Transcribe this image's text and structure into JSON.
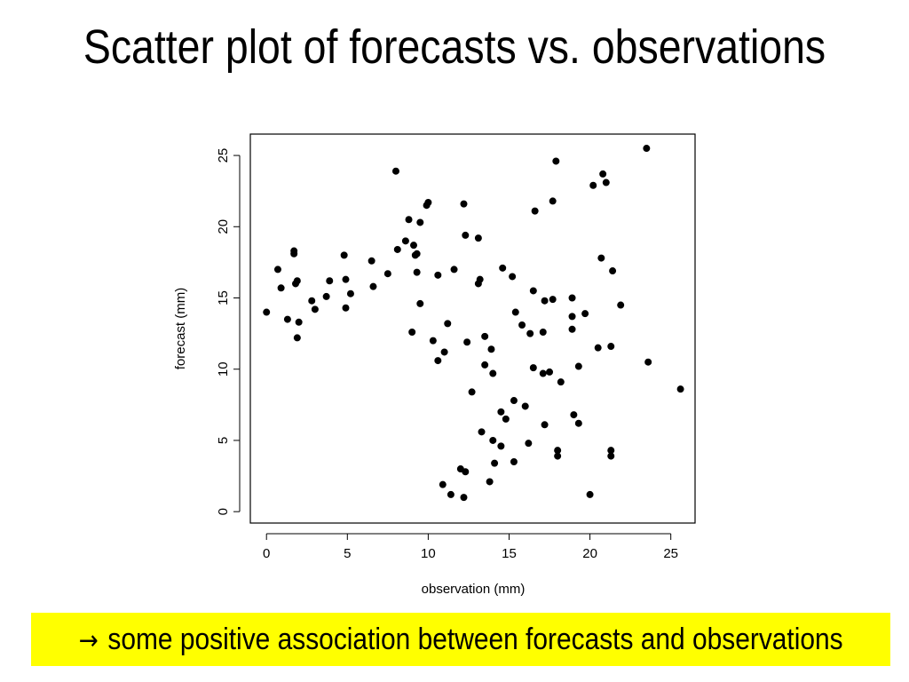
{
  "slide": {
    "title": "Scatter plot of forecasts vs. observations",
    "callout": {
      "arrow_glyph": "→",
      "text": "some positive association between forecasts and observations",
      "background": "#ffff00"
    }
  },
  "chart_data": {
    "type": "scatter",
    "xlabel": "observation (mm)",
    "ylabel": "forecast (mm)",
    "xlim": [
      -1,
      26.5
    ],
    "ylim": [
      -0.8,
      26.5
    ],
    "xticks": [
      0,
      5,
      10,
      15,
      20,
      25
    ],
    "yticks": [
      0,
      5,
      10,
      15,
      20,
      25
    ],
    "grid": false,
    "point_color": "#000000",
    "series": [
      {
        "points": [
          [
            23.5,
            25.5
          ],
          [
            8.0,
            23.9
          ],
          [
            17.9,
            24.6
          ],
          [
            20.8,
            23.7
          ],
          [
            21.0,
            23.1
          ],
          [
            20.2,
            22.9
          ],
          [
            10.0,
            21.7
          ],
          [
            9.9,
            21.5
          ],
          [
            12.2,
            21.6
          ],
          [
            17.7,
            21.8
          ],
          [
            16.6,
            21.1
          ],
          [
            9.5,
            20.3
          ],
          [
            8.8,
            20.5
          ],
          [
            12.3,
            19.4
          ],
          [
            13.1,
            19.2
          ],
          [
            8.6,
            19.0
          ],
          [
            9.1,
            18.7
          ],
          [
            1.7,
            18.3
          ],
          [
            1.7,
            18.1
          ],
          [
            8.1,
            18.4
          ],
          [
            9.3,
            18.1
          ],
          [
            4.8,
            18.0
          ],
          [
            9.2,
            18.0
          ],
          [
            20.7,
            17.8
          ],
          [
            6.5,
            17.6
          ],
          [
            0.7,
            17.0
          ],
          [
            14.6,
            17.1
          ],
          [
            21.4,
            16.9
          ],
          [
            11.6,
            17.0
          ],
          [
            9.3,
            16.8
          ],
          [
            7.5,
            16.7
          ],
          [
            10.6,
            16.6
          ],
          [
            1.9,
            16.2
          ],
          [
            3.9,
            16.2
          ],
          [
            4.9,
            16.3
          ],
          [
            13.2,
            16.3
          ],
          [
            15.2,
            16.5
          ],
          [
            1.8,
            16.0
          ],
          [
            0.9,
            15.7
          ],
          [
            6.6,
            15.8
          ],
          [
            13.1,
            16.0
          ],
          [
            5.2,
            15.3
          ],
          [
            16.5,
            15.5
          ],
          [
            3.7,
            15.1
          ],
          [
            18.9,
            15.0
          ],
          [
            2.8,
            14.8
          ],
          [
            0.0,
            14.0
          ],
          [
            17.2,
            14.8
          ],
          [
            17.7,
            14.9
          ],
          [
            21.9,
            14.5
          ],
          [
            3.0,
            14.2
          ],
          [
            4.9,
            14.3
          ],
          [
            9.5,
            14.6
          ],
          [
            18.9,
            13.7
          ],
          [
            19.7,
            13.9
          ],
          [
            15.4,
            14.0
          ],
          [
            1.3,
            13.5
          ],
          [
            2.0,
            13.3
          ],
          [
            11.2,
            13.2
          ],
          [
            15.8,
            13.1
          ],
          [
            17.1,
            12.6
          ],
          [
            16.3,
            12.5
          ],
          [
            18.9,
            12.8
          ],
          [
            13.5,
            12.3
          ],
          [
            1.9,
            12.2
          ],
          [
            21.3,
            11.6
          ],
          [
            20.5,
            11.5
          ],
          [
            17.5,
            9.8
          ],
          [
            17.1,
            9.7
          ],
          [
            18.2,
            9.1
          ],
          [
            19.3,
            10.2
          ],
          [
            23.6,
            10.5
          ],
          [
            25.6,
            8.6
          ],
          [
            16.0,
            7.4
          ],
          [
            17.2,
            6.1
          ],
          [
            19.0,
            6.8
          ],
          [
            19.3,
            6.2
          ],
          [
            16.2,
            4.8
          ],
          [
            14.5,
            4.6
          ],
          [
            18.0,
            4.3
          ],
          [
            18.0,
            3.9
          ],
          [
            21.3,
            4.3
          ],
          [
            21.3,
            3.9
          ],
          [
            20.0,
            1.2
          ],
          [
            14.1,
            3.4
          ],
          [
            13.8,
            2.1
          ],
          [
            12.0,
            3.0
          ],
          [
            12.3,
            2.8
          ],
          [
            12.2,
            1.0
          ],
          [
            11.4,
            1.2
          ],
          [
            10.9,
            1.9
          ],
          [
            13.3,
            5.6
          ],
          [
            14.0,
            5.0
          ],
          [
            15.3,
            3.5
          ],
          [
            14.8,
            6.5
          ],
          [
            12.7,
            8.4
          ],
          [
            13.9,
            11.4
          ],
          [
            12.4,
            11.9
          ],
          [
            11.0,
            11.2
          ],
          [
            10.6,
            10.6
          ],
          [
            10.3,
            12.0
          ],
          [
            9.0,
            12.6
          ],
          [
            14.0,
            9.7
          ],
          [
            13.5,
            10.3
          ],
          [
            16.5,
            10.1
          ],
          [
            15.3,
            7.8
          ],
          [
            14.5,
            7.0
          ]
        ]
      }
    ]
  }
}
